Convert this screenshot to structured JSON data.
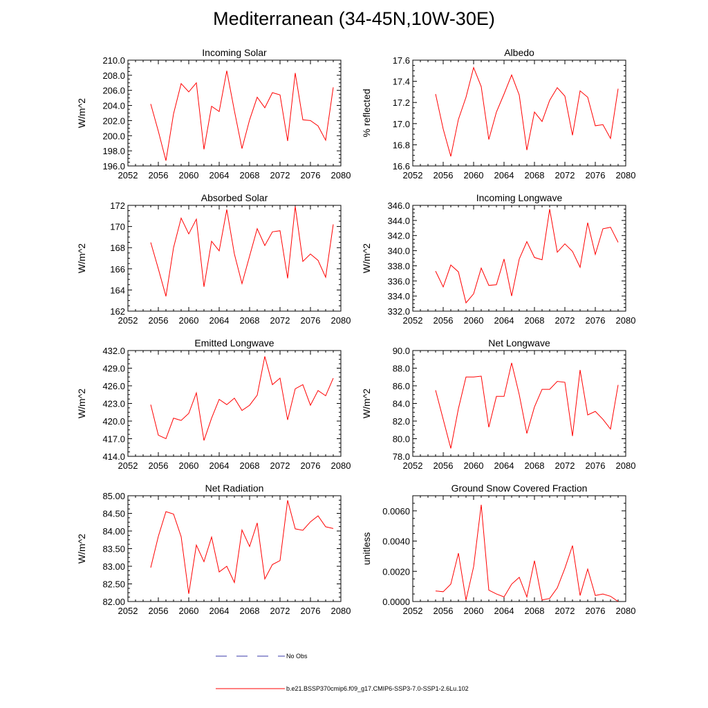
{
  "title": "Mediterranean (34-45N,10W-30E)",
  "x_ticks": [
    "2052",
    "2056",
    "2060",
    "2064",
    "2068",
    "2072",
    "2076",
    "2080"
  ],
  "x_values": [
    2055,
    2056,
    2057,
    2058,
    2059,
    2060,
    2061,
    2062,
    2063,
    2064,
    2065,
    2066,
    2067,
    2068,
    2069,
    2070,
    2071,
    2072,
    2073,
    2074,
    2075,
    2076,
    2077,
    2078,
    2079
  ],
  "legend": {
    "obs_label": "No Obs",
    "model_label": "b.e21.BSSP370cmip6.f09_g17.CMIP6-SSP3-7.0-SSP1-2.6Lu.102",
    "model_color": "#ff0000",
    "obs_color": "#3a3aa8"
  },
  "chart_data": [
    {
      "type": "line",
      "title": "Incoming Solar",
      "ylabel": "W/m^2",
      "ylim": [
        196.0,
        210.0
      ],
      "yticks": [
        196.0,
        198.0,
        200.0,
        202.0,
        204.0,
        206.0,
        208.0,
        210.0
      ],
      "ytick_labels": [
        "196.0",
        "198.0",
        "200.0",
        "202.0",
        "204.0",
        "206.0",
        "208.0",
        "210.0"
      ],
      "xlim": [
        2052,
        2080
      ],
      "series": [
        {
          "values": [
            204.2,
            200.6,
            196.7,
            202.9,
            206.9,
            205.8,
            207.0,
            198.2,
            203.9,
            203.2,
            208.6,
            203.3,
            198.3,
            202.1,
            205.1,
            203.7,
            205.7,
            205.4,
            199.3,
            208.3,
            202.1,
            202.0,
            201.3,
            199.4,
            206.4
          ]
        }
      ]
    },
    {
      "type": "line",
      "title": "Albedo",
      "ylabel": "% reflected",
      "ylim": [
        16.6,
        17.6
      ],
      "yticks": [
        16.6,
        16.8,
        17.0,
        17.2,
        17.4,
        17.6
      ],
      "ytick_labels": [
        "16.6",
        "16.8",
        "17.0",
        "17.2",
        "17.4",
        "17.6"
      ],
      "xlim": [
        2052,
        2080
      ],
      "series": [
        {
          "values": [
            17.28,
            16.95,
            16.69,
            17.04,
            17.25,
            17.53,
            17.35,
            16.85,
            17.11,
            17.28,
            17.46,
            17.27,
            16.75,
            17.11,
            17.02,
            17.22,
            17.34,
            17.26,
            16.89,
            17.31,
            17.25,
            16.98,
            16.99,
            16.86,
            17.33
          ]
        }
      ]
    },
    {
      "type": "line",
      "title": "Absorbed Solar",
      "ylabel": "W/m^2",
      "ylim": [
        162,
        172
      ],
      "yticks": [
        162,
        164,
        166,
        168,
        170,
        172
      ],
      "ytick_labels": [
        "162",
        "164",
        "166",
        "168",
        "170",
        "172"
      ],
      "xlim": [
        2052,
        2080
      ],
      "series": [
        {
          "values": [
            168.5,
            166.0,
            163.4,
            168.0,
            170.8,
            169.3,
            170.7,
            164.3,
            168.6,
            167.7,
            171.6,
            167.4,
            164.6,
            167.2,
            169.8,
            168.2,
            169.5,
            169.6,
            165.1,
            171.9,
            166.7,
            167.4,
            166.8,
            165.2,
            170.2
          ]
        }
      ]
    },
    {
      "type": "line",
      "title": "Incoming Longwave",
      "ylabel": "W/m^2",
      "ylim": [
        332.0,
        346.0
      ],
      "yticks": [
        332.0,
        334.0,
        336.0,
        338.0,
        340.0,
        342.0,
        344.0,
        346.0
      ],
      "ytick_labels": [
        "332.0",
        "334.0",
        "336.0",
        "338.0",
        "340.0",
        "342.0",
        "344.0",
        "346.0"
      ],
      "xlim": [
        2052,
        2080
      ],
      "series": [
        {
          "values": [
            337.3,
            335.2,
            338.1,
            337.2,
            333.1,
            334.3,
            337.7,
            335.4,
            335.5,
            338.9,
            334.0,
            338.9,
            341.2,
            339.1,
            338.8,
            345.5,
            339.8,
            340.9,
            339.9,
            337.8,
            343.7,
            339.5,
            342.9,
            343.1,
            341.1
          ]
        }
      ]
    },
    {
      "type": "line",
      "title": "Emitted Longwave",
      "ylabel": "W/m^2",
      "ylim": [
        414.0,
        432.0
      ],
      "yticks": [
        414.0,
        417.0,
        420.0,
        423.0,
        426.0,
        429.0,
        432.0
      ],
      "ytick_labels": [
        "414.0",
        "417.0",
        "420.0",
        "423.0",
        "426.0",
        "429.0",
        "432.0"
      ],
      "xlim": [
        2052,
        2080
      ],
      "series": [
        {
          "values": [
            422.8,
            417.6,
            417.0,
            420.5,
            420.1,
            421.3,
            424.8,
            416.7,
            420.5,
            423.7,
            422.8,
            423.9,
            421.8,
            422.7,
            424.4,
            431.0,
            426.2,
            427.3,
            420.2,
            425.5,
            426.2,
            422.7,
            425.2,
            424.3,
            427.3
          ]
        }
      ]
    },
    {
      "type": "line",
      "title": "Net Longwave",
      "ylabel": "W/m^2",
      "ylim": [
        78.0,
        90.0
      ],
      "yticks": [
        78.0,
        80.0,
        82.0,
        84.0,
        86.0,
        88.0,
        90.0
      ],
      "ytick_labels": [
        "78.0",
        "80.0",
        "82.0",
        "84.0",
        "86.0",
        "88.0",
        "90.0"
      ],
      "xlim": [
        2052,
        2080
      ],
      "series": [
        {
          "values": [
            85.5,
            82.2,
            78.9,
            83.4,
            87.0,
            87.0,
            87.1,
            81.3,
            84.8,
            84.8,
            88.6,
            85.0,
            80.6,
            83.6,
            85.6,
            85.6,
            86.5,
            86.4,
            80.3,
            87.8,
            82.7,
            83.1,
            82.2,
            81.1,
            86.1
          ]
        }
      ]
    },
    {
      "type": "line",
      "title": "Net Radiation",
      "ylabel": "W/m^2",
      "ylim": [
        82.0,
        85.0
      ],
      "yticks": [
        82.0,
        82.5,
        83.0,
        83.5,
        84.0,
        84.5,
        85.0
      ],
      "ytick_labels": [
        "82.00",
        "82.50",
        "83.00",
        "83.50",
        "84.00",
        "84.50",
        "85.00"
      ],
      "xlim": [
        2052,
        2080
      ],
      "series": [
        {
          "values": [
            82.96,
            83.85,
            84.55,
            84.48,
            83.84,
            82.22,
            83.6,
            83.13,
            83.83,
            82.84,
            83.0,
            82.54,
            84.03,
            83.56,
            84.23,
            82.64,
            83.05,
            83.16,
            84.87,
            84.06,
            84.02,
            84.26,
            84.43,
            84.12,
            84.07
          ]
        }
      ]
    },
    {
      "type": "line",
      "title": "Ground Snow Covered Fraction",
      "ylabel": "unitless",
      "ylim": [
        0.0,
        0.007
      ],
      "yticks": [
        0.0,
        0.002,
        0.004,
        0.006
      ],
      "ytick_labels": [
        "0.0000",
        "0.0020",
        "0.0040",
        "0.0060"
      ],
      "xlim": [
        2052,
        2080
      ],
      "series": [
        {
          "values": [
            0.0007,
            0.00065,
            0.00115,
            0.0032,
            0.0001,
            0.0023,
            0.0064,
            0.00075,
            0.0005,
            0.0003,
            0.00115,
            0.0016,
            0.0003,
            0.0027,
            0.0001,
            0.0002,
            0.0009,
            0.0022,
            0.0037,
            0.0004,
            0.00215,
            0.0004,
            0.0005,
            0.00035,
            0.0
          ]
        }
      ]
    }
  ]
}
